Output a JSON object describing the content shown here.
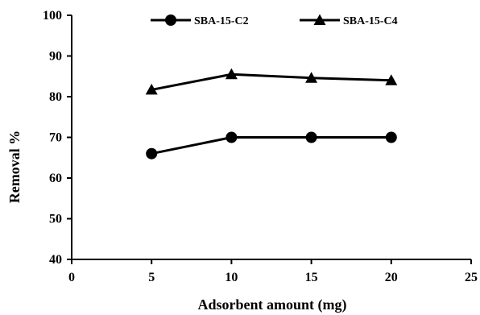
{
  "chart_data": {
    "type": "line",
    "xlabel": "Adsorbent amount (mg)",
    "ylabel": "Removal %",
    "xlim": [
      0,
      25
    ],
    "ylim": [
      40,
      100
    ],
    "xticks": [
      0,
      5,
      10,
      15,
      20,
      25
    ],
    "yticks": [
      40,
      50,
      60,
      70,
      80,
      90,
      100
    ],
    "grid": false,
    "legend": "top",
    "series": [
      {
        "name": "SBA-15-C2",
        "marker": "circle",
        "x": [
          5,
          10,
          15,
          20
        ],
        "y": [
          66,
          70,
          70,
          70
        ]
      },
      {
        "name": "SBA-15-C4",
        "marker": "triangle",
        "x": [
          5,
          10,
          15,
          20
        ],
        "y": [
          81.7,
          85.5,
          84.6,
          84
        ]
      }
    ]
  }
}
